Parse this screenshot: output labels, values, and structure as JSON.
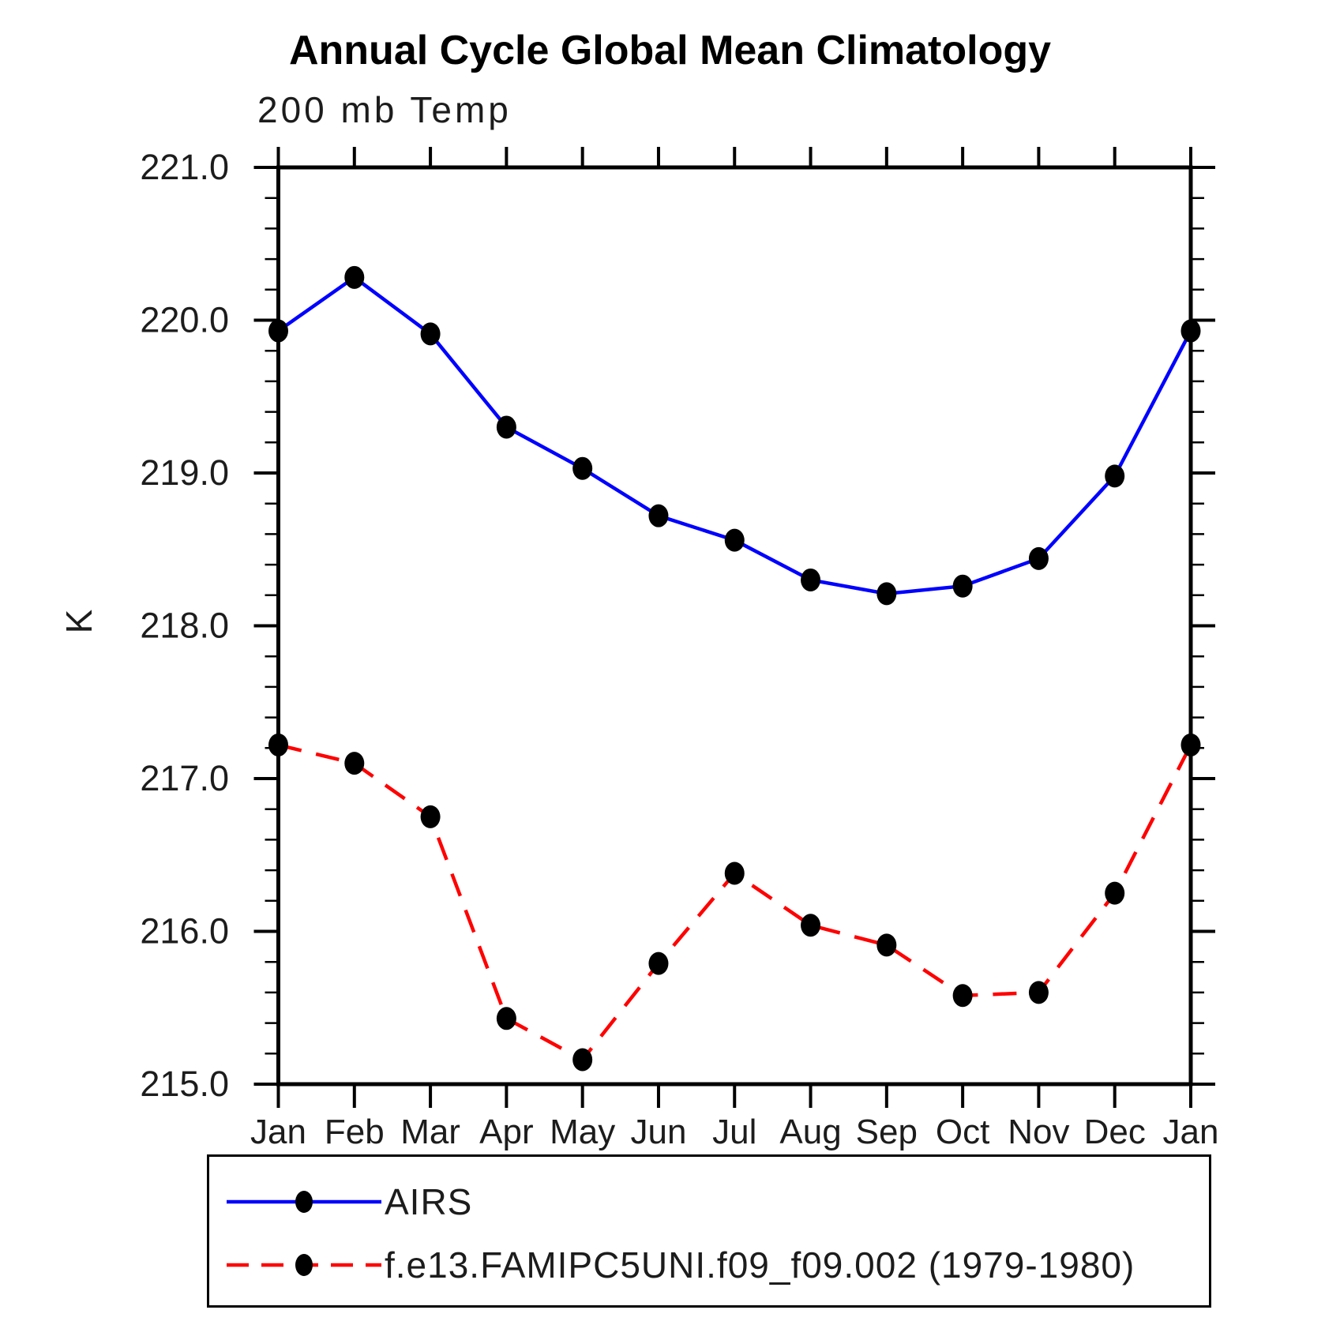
{
  "chart_data": {
    "type": "line",
    "title": "Annual Cycle Global Mean Climatology",
    "panel_title": "200 mb Temp",
    "ylabel": "K",
    "categories": [
      "Jan",
      "Feb",
      "Mar",
      "Apr",
      "May",
      "Jun",
      "Jul",
      "Aug",
      "Sep",
      "Oct",
      "Nov",
      "Dec",
      "Jan"
    ],
    "ylim": [
      215.0,
      221.0
    ],
    "ytick_interval": 1.0,
    "ytick_minor_interval": 0.2,
    "ytick_labels": [
      "221.0",
      "220.0",
      "219.0",
      "218.0",
      "217.0",
      "216.0",
      "215.0"
    ],
    "grid": false,
    "legend_position": "bottom",
    "marker": "filled-black-circle",
    "series": [
      {
        "name": "AIRS",
        "color": "#0000ff",
        "line_style": "solid",
        "values": [
          219.93,
          220.28,
          219.91,
          219.3,
          219.03,
          218.72,
          218.56,
          218.3,
          218.21,
          218.26,
          218.44,
          218.98,
          219.93
        ]
      },
      {
        "name": "f.e13.FAMIPC5UNI.f09_f09.002 (1979-1980)",
        "color": "#ff0000",
        "line_style": "dashed",
        "values": [
          217.22,
          217.1,
          216.75,
          215.43,
          215.16,
          215.79,
          216.38,
          216.04,
          215.91,
          215.58,
          215.6,
          216.25,
          217.22
        ]
      }
    ]
  }
}
